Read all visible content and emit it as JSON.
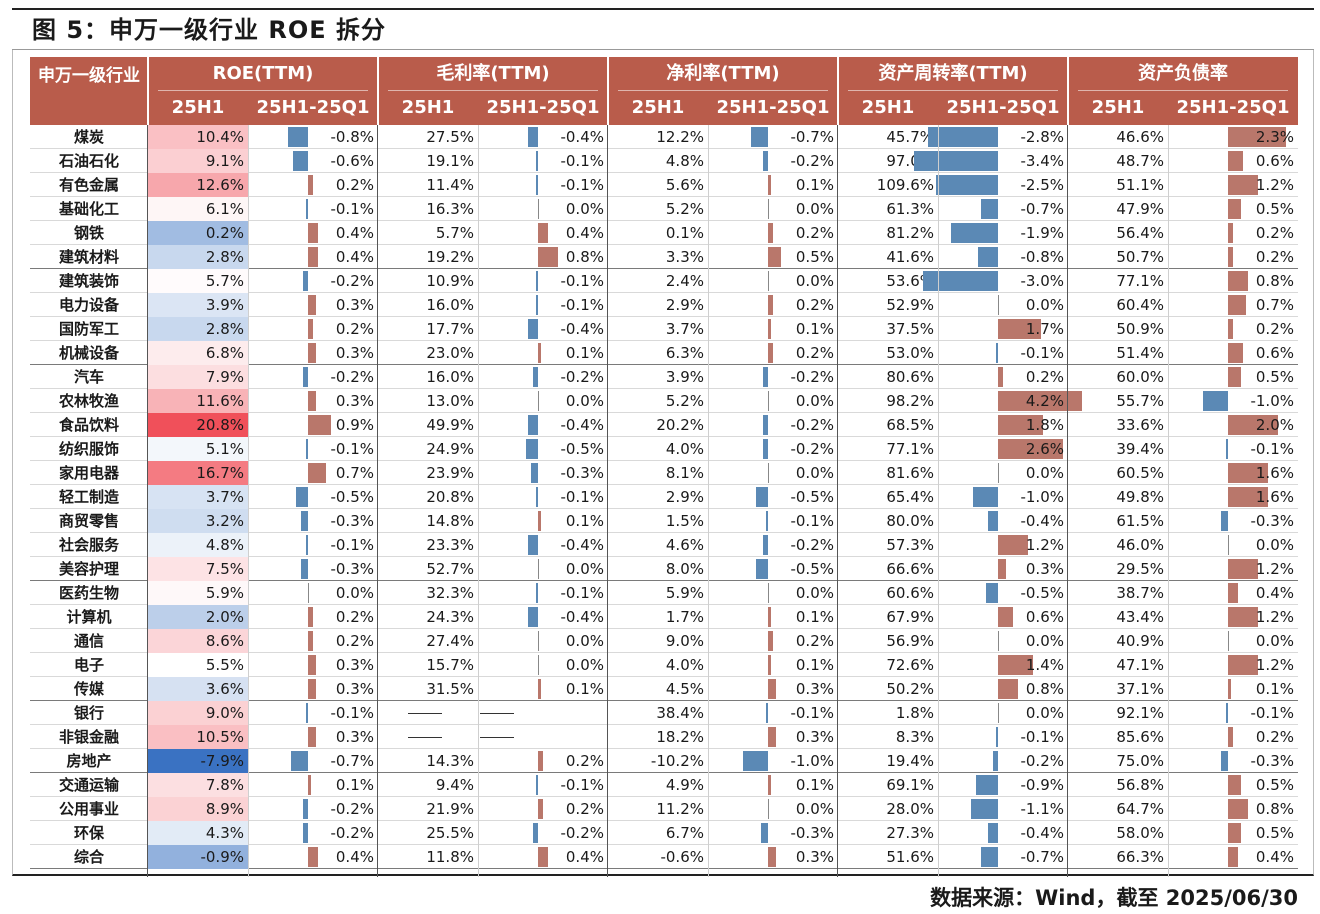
{
  "title": "图 5：申万一级行业 ROE 拆分",
  "source": "数据来源：Wind，截至 2025/06/30",
  "header": {
    "industry": "申万一级行业",
    "groups": [
      "ROE(TTM)",
      "毛利率(TTM)",
      "净利率(TTM)",
      "资产周转率(TTM)",
      "资产负债率"
    ],
    "sub_level": "25H1",
    "sub_change": "25H1-25Q1"
  },
  "colors": {
    "header_bg": "#b95c4b",
    "bar_positive": "#b9776b",
    "bar_negative": "#5b89b5",
    "heat_high": "#f0505a",
    "heat_low": "#3a72c2"
  },
  "chart_data": {
    "type": "table",
    "columns": [
      "ROE(TTM) 25H1",
      "ROE(TTM) 25H1-25Q1",
      "毛利率(TTM) 25H1",
      "毛利率(TTM) 25H1-25Q1",
      "净利率(TTM) 25H1",
      "净利率(TTM) 25H1-25Q1",
      "资产周转率(TTM) 25H1",
      "资产周转率(TTM) 25H1-25Q1",
      "资产负债率 25H1",
      "资产负债率 25H1-25Q1"
    ],
    "rows": [
      {
        "name": "煤炭",
        "values": [
          "10.4%",
          "-0.8%",
          "27.5%",
          "-0.4%",
          "12.2%",
          "-0.7%",
          "45.7%",
          "-2.8%",
          "46.6%",
          "2.3%"
        ]
      },
      {
        "name": "石油石化",
        "values": [
          "9.1%",
          "-0.6%",
          "19.1%",
          "-0.1%",
          "4.8%",
          "-0.2%",
          "97.0%",
          "-3.4%",
          "48.7%",
          "0.6%"
        ]
      },
      {
        "name": "有色金属",
        "values": [
          "12.6%",
          "0.2%",
          "11.4%",
          "-0.1%",
          "5.6%",
          "0.1%",
          "109.6%",
          "-2.5%",
          "51.1%",
          "1.2%"
        ]
      },
      {
        "name": "基础化工",
        "values": [
          "6.1%",
          "-0.1%",
          "16.3%",
          "0.0%",
          "5.2%",
          "0.0%",
          "61.3%",
          "-0.7%",
          "47.9%",
          "0.5%"
        ]
      },
      {
        "name": "钢铁",
        "values": [
          "0.2%",
          "0.4%",
          "5.7%",
          "0.4%",
          "0.1%",
          "0.2%",
          "81.2%",
          "-1.9%",
          "56.4%",
          "0.2%"
        ]
      },
      {
        "name": "建筑材料",
        "values": [
          "2.8%",
          "0.4%",
          "19.2%",
          "0.8%",
          "3.3%",
          "0.5%",
          "41.6%",
          "-0.8%",
          "50.7%",
          "0.2%"
        ]
      },
      {
        "name": "建筑装饰",
        "values": [
          "5.7%",
          "-0.2%",
          "10.9%",
          "-0.1%",
          "2.4%",
          "0.0%",
          "53.6%",
          "-3.0%",
          "77.1%",
          "0.8%"
        ]
      },
      {
        "name": "电力设备",
        "values": [
          "3.9%",
          "0.3%",
          "16.0%",
          "-0.1%",
          "2.9%",
          "0.2%",
          "52.9%",
          "0.0%",
          "60.4%",
          "0.7%"
        ]
      },
      {
        "name": "国防军工",
        "values": [
          "2.8%",
          "0.2%",
          "17.7%",
          "-0.4%",
          "3.7%",
          "0.1%",
          "37.5%",
          "1.7%",
          "50.9%",
          "0.2%"
        ]
      },
      {
        "name": "机械设备",
        "values": [
          "6.8%",
          "0.3%",
          "23.0%",
          "0.1%",
          "6.3%",
          "0.2%",
          "53.0%",
          "-0.1%",
          "51.4%",
          "0.6%"
        ]
      },
      {
        "name": "汽车",
        "values": [
          "7.9%",
          "-0.2%",
          "16.0%",
          "-0.2%",
          "3.9%",
          "-0.2%",
          "80.6%",
          "0.2%",
          "60.0%",
          "0.5%"
        ]
      },
      {
        "name": "农林牧渔",
        "values": [
          "11.6%",
          "0.3%",
          "13.0%",
          "0.0%",
          "5.2%",
          "0.0%",
          "98.2%",
          "4.2%",
          "55.7%",
          "-1.0%"
        ]
      },
      {
        "name": "食品饮料",
        "values": [
          "20.8%",
          "0.9%",
          "49.9%",
          "-0.4%",
          "20.2%",
          "-0.2%",
          "68.5%",
          "1.8%",
          "33.6%",
          "2.0%"
        ]
      },
      {
        "name": "纺织服饰",
        "values": [
          "5.1%",
          "-0.1%",
          "24.9%",
          "-0.5%",
          "4.0%",
          "-0.2%",
          "77.1%",
          "2.6%",
          "39.4%",
          "-0.1%"
        ]
      },
      {
        "name": "家用电器",
        "values": [
          "16.7%",
          "0.7%",
          "23.9%",
          "-0.3%",
          "8.1%",
          "0.0%",
          "81.6%",
          "0.0%",
          "60.5%",
          "1.6%"
        ]
      },
      {
        "name": "轻工制造",
        "values": [
          "3.7%",
          "-0.5%",
          "20.8%",
          "-0.1%",
          "2.9%",
          "-0.5%",
          "65.4%",
          "-1.0%",
          "49.8%",
          "1.6%"
        ]
      },
      {
        "name": "商贸零售",
        "values": [
          "3.2%",
          "-0.3%",
          "14.8%",
          "0.1%",
          "1.5%",
          "-0.1%",
          "80.0%",
          "-0.4%",
          "61.5%",
          "-0.3%"
        ]
      },
      {
        "name": "社会服务",
        "values": [
          "4.8%",
          "-0.1%",
          "23.3%",
          "-0.4%",
          "4.6%",
          "-0.2%",
          "57.3%",
          "1.2%",
          "46.0%",
          "0.0%"
        ]
      },
      {
        "name": "美容护理",
        "values": [
          "7.5%",
          "-0.3%",
          "52.7%",
          "0.0%",
          "8.0%",
          "-0.5%",
          "66.6%",
          "0.3%",
          "29.5%",
          "1.2%"
        ]
      },
      {
        "name": "医药生物",
        "values": [
          "5.9%",
          "0.0%",
          "32.3%",
          "-0.1%",
          "5.9%",
          "0.0%",
          "60.6%",
          "-0.5%",
          "38.7%",
          "0.4%"
        ]
      },
      {
        "name": "计算机",
        "values": [
          "2.0%",
          "0.2%",
          "24.3%",
          "-0.4%",
          "1.7%",
          "0.1%",
          "67.9%",
          "0.6%",
          "43.4%",
          "1.2%"
        ]
      },
      {
        "name": "通信",
        "values": [
          "8.6%",
          "0.2%",
          "27.4%",
          "0.0%",
          "9.0%",
          "0.2%",
          "56.9%",
          "0.0%",
          "40.9%",
          "0.0%"
        ]
      },
      {
        "name": "电子",
        "values": [
          "5.5%",
          "0.3%",
          "15.7%",
          "0.0%",
          "4.0%",
          "0.1%",
          "72.6%",
          "1.4%",
          "47.1%",
          "1.2%"
        ]
      },
      {
        "name": "传媒",
        "values": [
          "3.6%",
          "0.3%",
          "31.5%",
          "0.1%",
          "4.5%",
          "0.3%",
          "50.2%",
          "0.8%",
          "37.1%",
          "0.1%"
        ]
      },
      {
        "name": "银行",
        "values": [
          "9.0%",
          "-0.1%",
          null,
          null,
          "38.4%",
          "-0.1%",
          "1.8%",
          "0.0%",
          "92.1%",
          "-0.1%"
        ]
      },
      {
        "name": "非银金融",
        "values": [
          "10.5%",
          "0.3%",
          null,
          null,
          "18.2%",
          "0.3%",
          "8.3%",
          "-0.1%",
          "85.6%",
          "0.2%"
        ]
      },
      {
        "name": "房地产",
        "values": [
          "-7.9%",
          "-0.7%",
          "14.3%",
          "0.2%",
          "-10.2%",
          "-1.0%",
          "19.4%",
          "-0.2%",
          "75.0%",
          "-0.3%"
        ]
      },
      {
        "name": "交通运输",
        "values": [
          "7.8%",
          "0.1%",
          "9.4%",
          "-0.1%",
          "4.9%",
          "0.1%",
          "69.1%",
          "-0.9%",
          "56.8%",
          "0.5%"
        ]
      },
      {
        "name": "公用事业",
        "values": [
          "8.9%",
          "-0.2%",
          "21.9%",
          "0.2%",
          "11.2%",
          "0.0%",
          "28.0%",
          "-1.1%",
          "64.7%",
          "0.8%"
        ]
      },
      {
        "name": "环保",
        "values": [
          "4.3%",
          "-0.2%",
          "25.5%",
          "-0.2%",
          "6.7%",
          "-0.3%",
          "27.3%",
          "-0.4%",
          "58.0%",
          "0.5%"
        ]
      },
      {
        "name": "综合",
        "values": [
          "-0.9%",
          "0.4%",
          "11.8%",
          "0.4%",
          "-0.6%",
          "0.3%",
          "51.6%",
          "-0.7%",
          "66.3%",
          "0.4%"
        ]
      }
    ],
    "group_breaks_after": [
      "建筑材料",
      "机械设备",
      "美容护理",
      "传媒",
      "房地产",
      "综合"
    ]
  }
}
